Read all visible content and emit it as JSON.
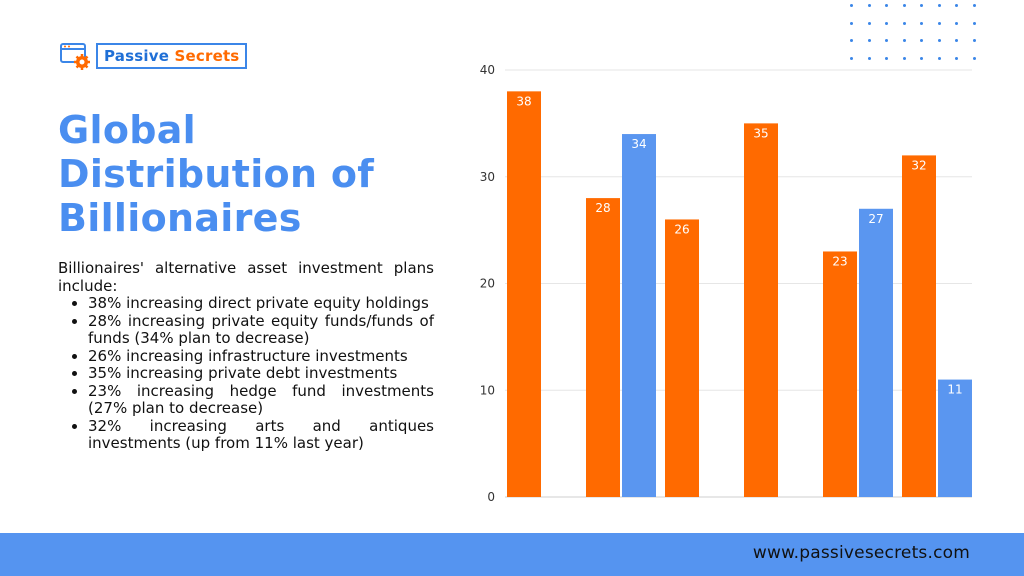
{
  "brand": {
    "name_part1": "Passive",
    "name_part2": "Secrets"
  },
  "colors": {
    "accent_orange": "#ff6a00",
    "accent_blue": "#5a96f0",
    "title_blue": "#4a8ef0",
    "footer_blue": "#5594f0"
  },
  "title": "Global Distribution of Billionaires",
  "intro": "Billionaires' alternative asset investment plans include:",
  "bullets": [
    "38% increasing direct private equity holdings",
    "28% increasing private equity funds/funds of funds (34% plan to decrease)",
    "26% increasing infrastructure investments",
    "35% increasing private debt investments",
    "23% increasing hedge fund investments (27% plan to decrease)",
    "32% increasing arts and antiques investments (up from 11% last year)"
  ],
  "footer": {
    "url": "www.passivesecrets.com"
  },
  "chart_data": {
    "type": "bar",
    "title": "",
    "xlabel": "",
    "ylabel": "",
    "ylim": [
      0,
      40
    ],
    "yticks": [
      0,
      10,
      20,
      30,
      40
    ],
    "grid": true,
    "bars": [
      {
        "group": 0,
        "color": "#ff6a00",
        "value": 38
      },
      {
        "group": 1,
        "color": "#ff6a00",
        "value": 28
      },
      {
        "group": 1,
        "color": "#5a96f0",
        "value": 34
      },
      {
        "group": 2,
        "color": "#ff6a00",
        "value": 26
      },
      {
        "group": 3,
        "color": "#ff6a00",
        "value": 35
      },
      {
        "group": 4,
        "color": "#ff6a00",
        "value": 23
      },
      {
        "group": 4,
        "color": "#5a96f0",
        "value": 27
      },
      {
        "group": 5,
        "color": "#ff6a00",
        "value": 32
      },
      {
        "group": 5,
        "color": "#5a96f0",
        "value": 11
      }
    ]
  }
}
